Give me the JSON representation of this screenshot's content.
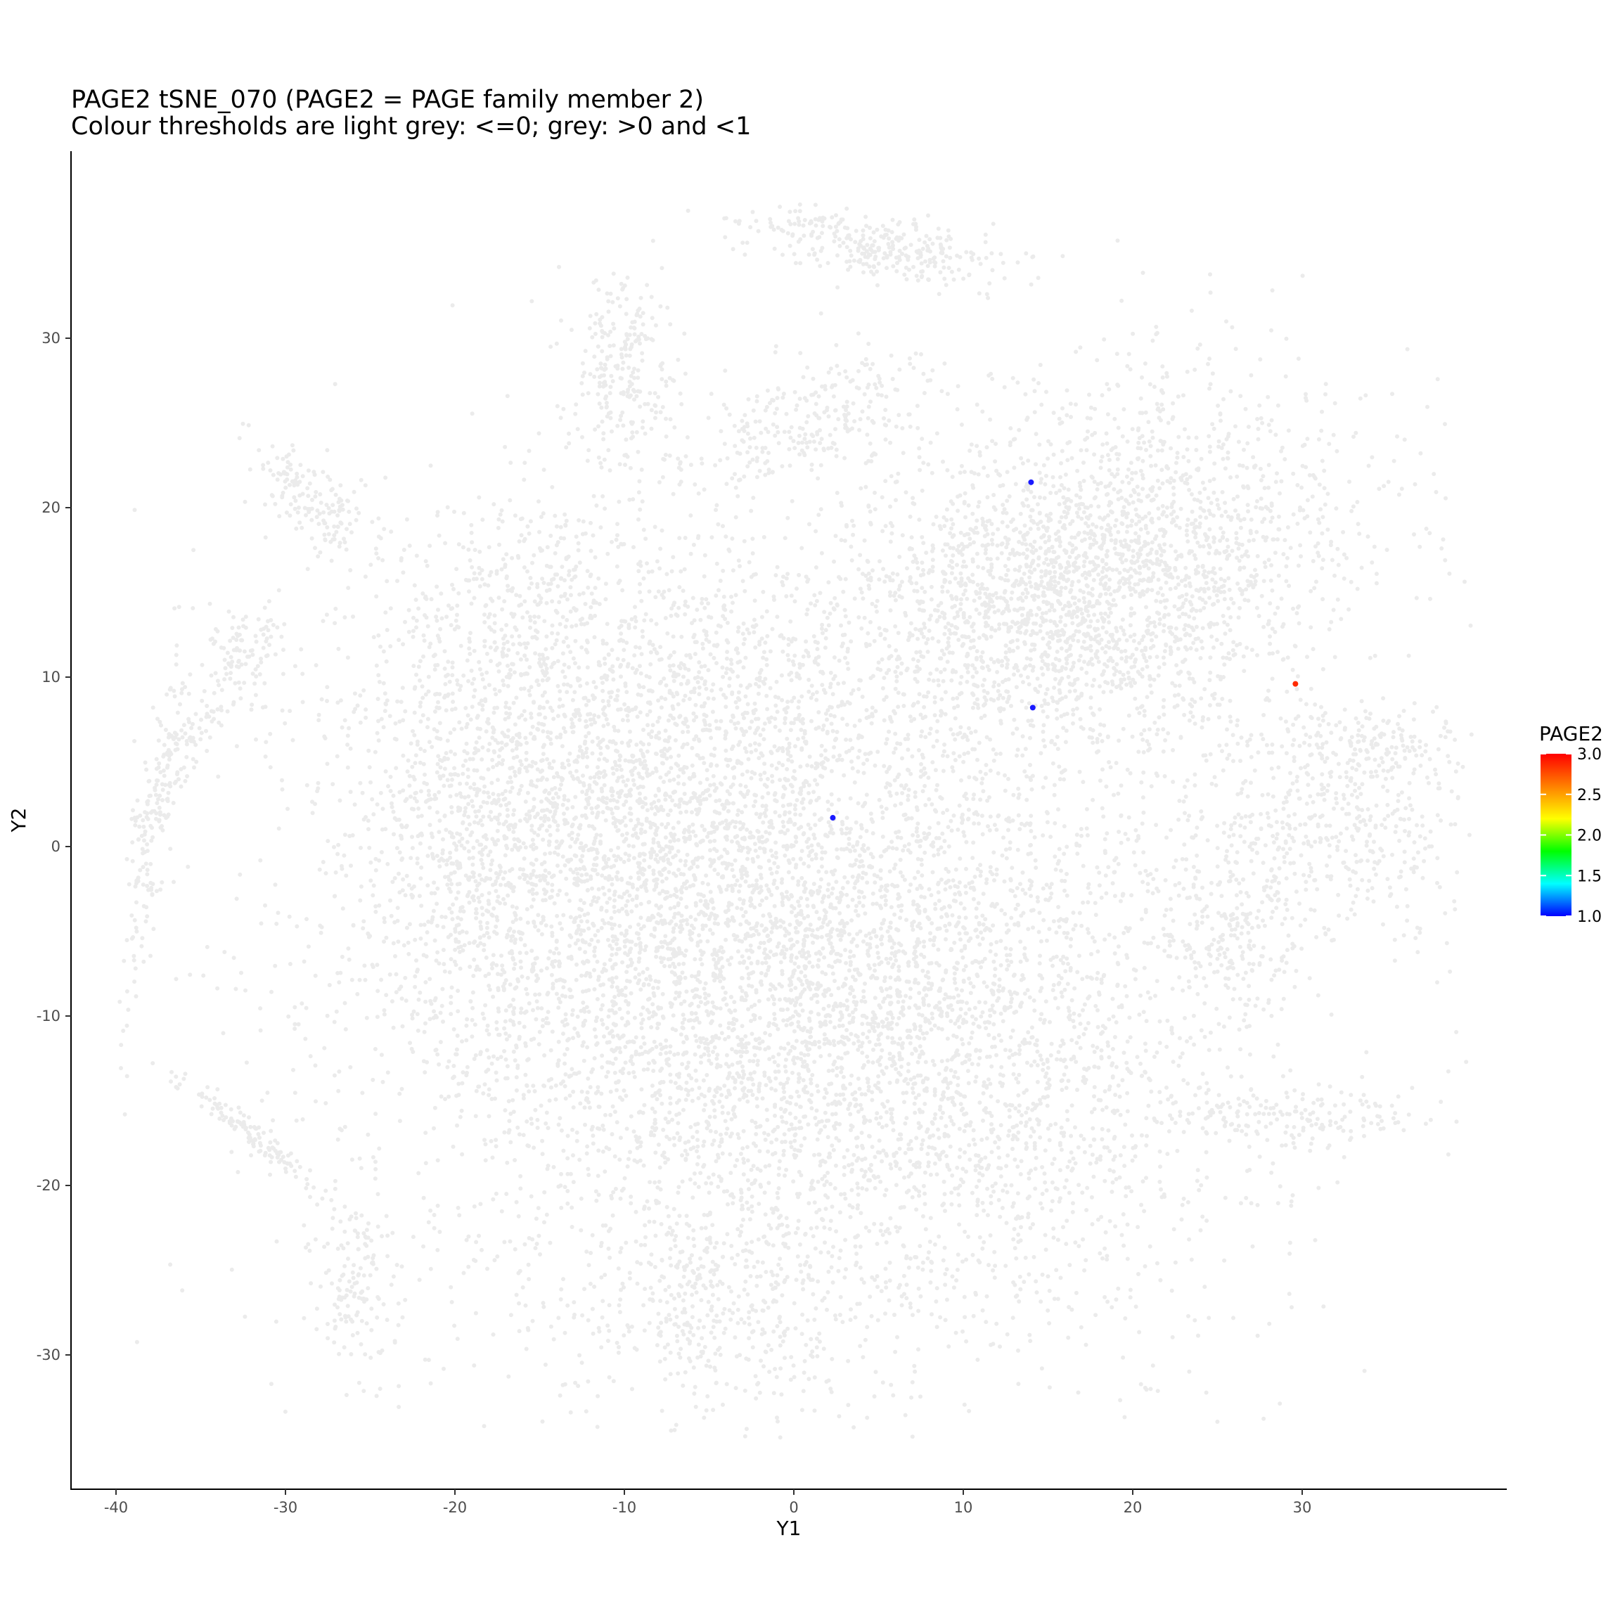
{
  "chart_data": {
    "type": "scatter",
    "title": "PAGE2 tSNE_070 (PAGE2 = PAGE family member 2)",
    "subtitle": "Colour thresholds are light grey: <=0; grey: >0 and <1",
    "xlabel": "Y1",
    "ylabel": "Y2",
    "xlim": [
      -43,
      42
    ],
    "ylim": [
      -38,
      41
    ],
    "x_ticks": [
      -40,
      -30,
      -20,
      -10,
      0,
      10,
      20,
      30
    ],
    "y_ticks": [
      -30,
      -20,
      -10,
      0,
      10,
      20,
      30
    ],
    "x_tick_labels": [
      "-40",
      "-30",
      "-20",
      "-10",
      "0",
      "10",
      "20",
      "30"
    ],
    "y_tick_labels": [
      "-30",
      "-20",
      "-10",
      "0",
      "10",
      "20",
      "30"
    ],
    "grid": false,
    "background_color": "#ebebeb",
    "highlighted_points": [
      {
        "x": 14.0,
        "y": 21.5,
        "value": 1.0,
        "color": "#1a1aff"
      },
      {
        "x": 14.1,
        "y": 8.2,
        "value": 1.0,
        "color": "#1a1aff"
      },
      {
        "x": 2.3,
        "y": 1.7,
        "value": 1.0,
        "color": "#1a1aff"
      },
      {
        "x": 29.6,
        "y": 9.6,
        "value": 3.0,
        "color": "#ff2a00"
      }
    ],
    "legend": {
      "title": "PAGE2",
      "placement": "right",
      "range": [
        1.0,
        3.0
      ],
      "ticks": [
        1.0,
        1.5,
        2.0,
        2.5,
        3.0
      ],
      "tick_labels": [
        "1.0",
        "1.5",
        "2.0",
        "2.5",
        "3.0"
      ],
      "colors": [
        "#0000ff",
        "#00ffff",
        "#00ff00",
        "#ffff00",
        "#ff8000",
        "#ff0000"
      ]
    }
  }
}
